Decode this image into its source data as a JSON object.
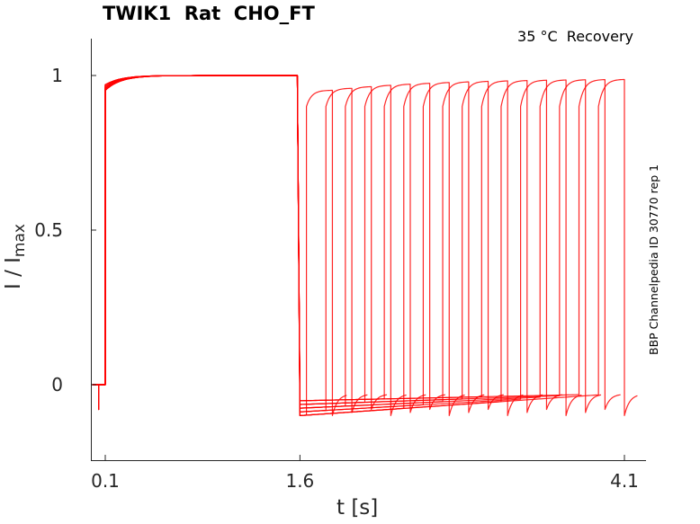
{
  "chart_data": {
    "type": "line",
    "title": "TWIK1  Rat  CHO_FT",
    "subtitle": "35 °C  Recovery",
    "side_label": "BBP Channelpedia ID 30770 rep 1",
    "xlabel": "t [s]",
    "ylabel": "I / I",
    "ylabel_sub": "max",
    "xlim": [
      0.0,
      4.2
    ],
    "ylim": [
      -0.24,
      1.12
    ],
    "x_ticks": [
      0.1,
      1.6,
      4.1
    ],
    "x_tick_labels": [
      "0.1",
      "1.6",
      "4.1"
    ],
    "y_ticks": [
      0,
      0.5,
      1
    ],
    "y_tick_labels": [
      "0",
      "0.5",
      "1"
    ],
    "grid": false,
    "series_color": "#ff0000",
    "conditioning_pulse": {
      "start": 0.1,
      "end": 1.6,
      "peak": 0.97,
      "plateau": 1.0
    },
    "baseline": 0.0,
    "initial_artifact": -0.08,
    "test_pulse": {
      "count": 16,
      "first_onset": 1.65,
      "onset_step": 0.15,
      "duration": 0.2,
      "peak": 0.99,
      "recovery_start": -0.1,
      "recovery_end": -0.03,
      "tail_min": -0.1
    }
  }
}
